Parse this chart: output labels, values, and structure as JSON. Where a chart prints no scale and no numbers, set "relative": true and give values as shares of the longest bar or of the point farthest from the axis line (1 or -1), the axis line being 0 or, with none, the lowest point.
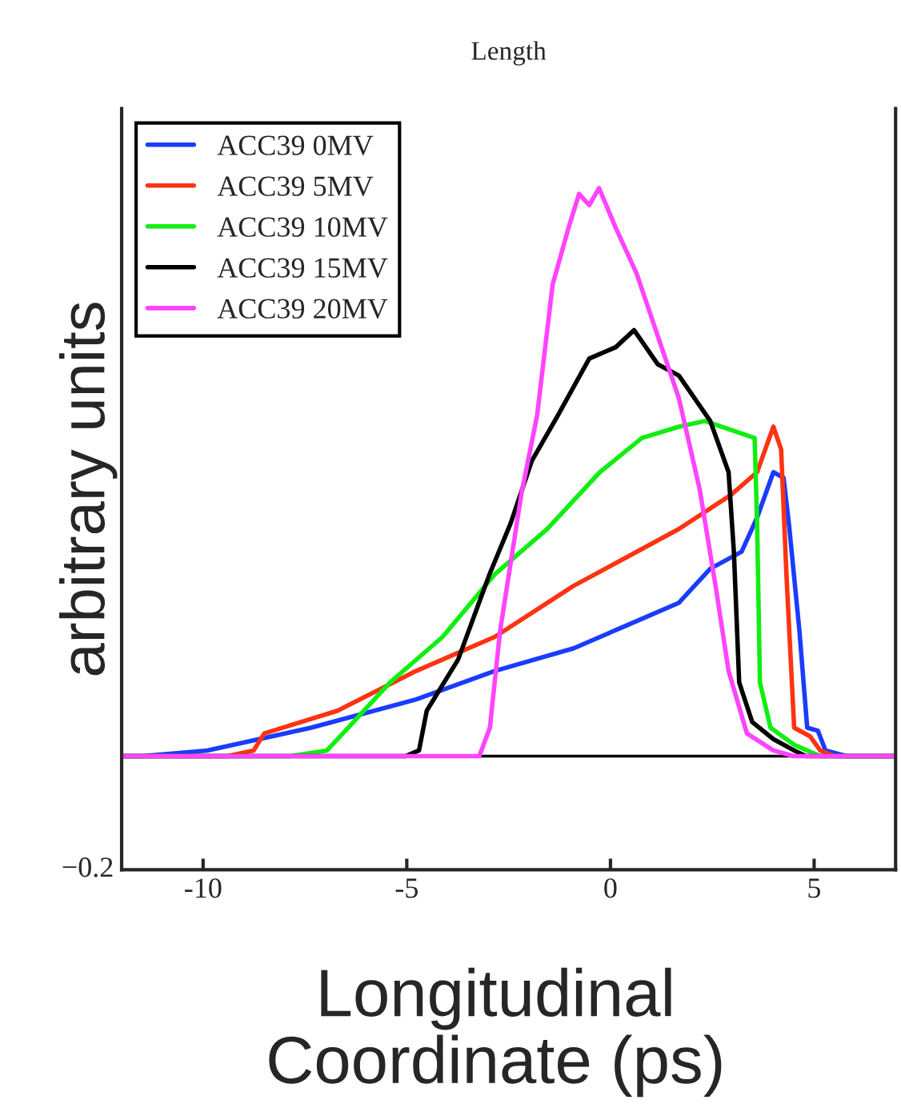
{
  "chart_data": {
    "type": "line",
    "title": "Length",
    "xlabel": "Longitudinal\nCoordinate (ps)",
    "ylabel": "arbitrary units",
    "xlim": [
      -12,
      7
    ],
    "xticks": [
      -10,
      -5,
      0,
      5
    ],
    "relative": true,
    "annotations": [
      "−0.2"
    ],
    "grid": false,
    "legend": "top left",
    "marker": "none",
    "line_style": "solid",
    "series": [
      {
        "name": "ACC39 0MV",
        "color": "#1a3cff",
        "x": [
          -12,
          -11.5,
          -9.9,
          -7.35,
          -4.77,
          -2.84,
          -0.9,
          0.39,
          1.68,
          2.45,
          3.22,
          3.6,
          4.0,
          4.25,
          4.38,
          4.64,
          4.83,
          5.09,
          5.28,
          5.8,
          7
        ],
        "values": [
          0,
          0,
          0.01,
          0.05,
          0.1,
          0.15,
          0.19,
          0.23,
          0.27,
          0.33,
          0.36,
          0.42,
          0.5,
          0.49,
          0.41,
          0.22,
          0.05,
          0.045,
          0.01,
          0,
          0
        ]
      },
      {
        "name": "ACC39 5MV",
        "color": "#ff3311",
        "x": [
          -12,
          -9.4,
          -8.76,
          -8.5,
          -6.7,
          -4.77,
          -2.84,
          -0.9,
          0.39,
          1.68,
          2.96,
          3.6,
          4.0,
          4.19,
          4.32,
          4.51,
          4.9,
          5.15,
          5.5,
          7
        ],
        "values": [
          0,
          0,
          0.01,
          0.04,
          0.08,
          0.15,
          0.21,
          0.3,
          0.35,
          0.4,
          0.46,
          0.5,
          0.58,
          0.54,
          0.32,
          0.05,
          0.035,
          0.01,
          0,
          0
        ]
      },
      {
        "name": "ACC39 10MV",
        "color": "#11ee11",
        "x": [
          -12,
          -7.86,
          -6.96,
          -6.44,
          -5.41,
          -4.12,
          -2.84,
          -1.55,
          -0.26,
          0.77,
          1.68,
          2.32,
          3.54,
          3.6,
          3.67,
          3.93,
          4.51,
          5.15,
          7
        ],
        "values": [
          0,
          0,
          0.01,
          0.05,
          0.13,
          0.21,
          0.32,
          0.4,
          0.5,
          0.56,
          0.58,
          0.59,
          0.56,
          0.41,
          0.13,
          0.05,
          0.02,
          0,
          0
        ]
      },
      {
        "name": "ACC39 15MV",
        "color": "#000000",
        "x": [
          -12,
          -5.03,
          -4.7,
          -4.51,
          -3.74,
          -2.97,
          -2.45,
          -1.93,
          -1.29,
          -0.52,
          0.13,
          0.58,
          1.16,
          1.68,
          2.45,
          2.9,
          3.03,
          3.16,
          3.48,
          4.0,
          4.51,
          4.8,
          7
        ],
        "values": [
          0,
          0,
          0.01,
          0.08,
          0.17,
          0.32,
          0.41,
          0.52,
          0.6,
          0.7,
          0.72,
          0.75,
          0.69,
          0.67,
          0.59,
          0.5,
          0.36,
          0.13,
          0.06,
          0.03,
          0.01,
          0,
          0
        ]
      },
      {
        "name": "ACC39 20MV",
        "color": "#ff44ff",
        "x": [
          -12,
          -3.22,
          -2.96,
          -2.71,
          -2.19,
          -1.8,
          -1.42,
          -1.03,
          -0.77,
          -0.52,
          -0.28,
          0.13,
          0.64,
          1.16,
          1.68,
          2.19,
          2.58,
          2.9,
          3.35,
          4.0,
          4.5,
          7
        ],
        "values": [
          0,
          0,
          0.05,
          0.22,
          0.46,
          0.6,
          0.83,
          0.93,
          0.99,
          0.97,
          1.0,
          0.93,
          0.85,
          0.74,
          0.63,
          0.47,
          0.3,
          0.15,
          0.04,
          0.01,
          0,
          0
        ]
      }
    ]
  }
}
